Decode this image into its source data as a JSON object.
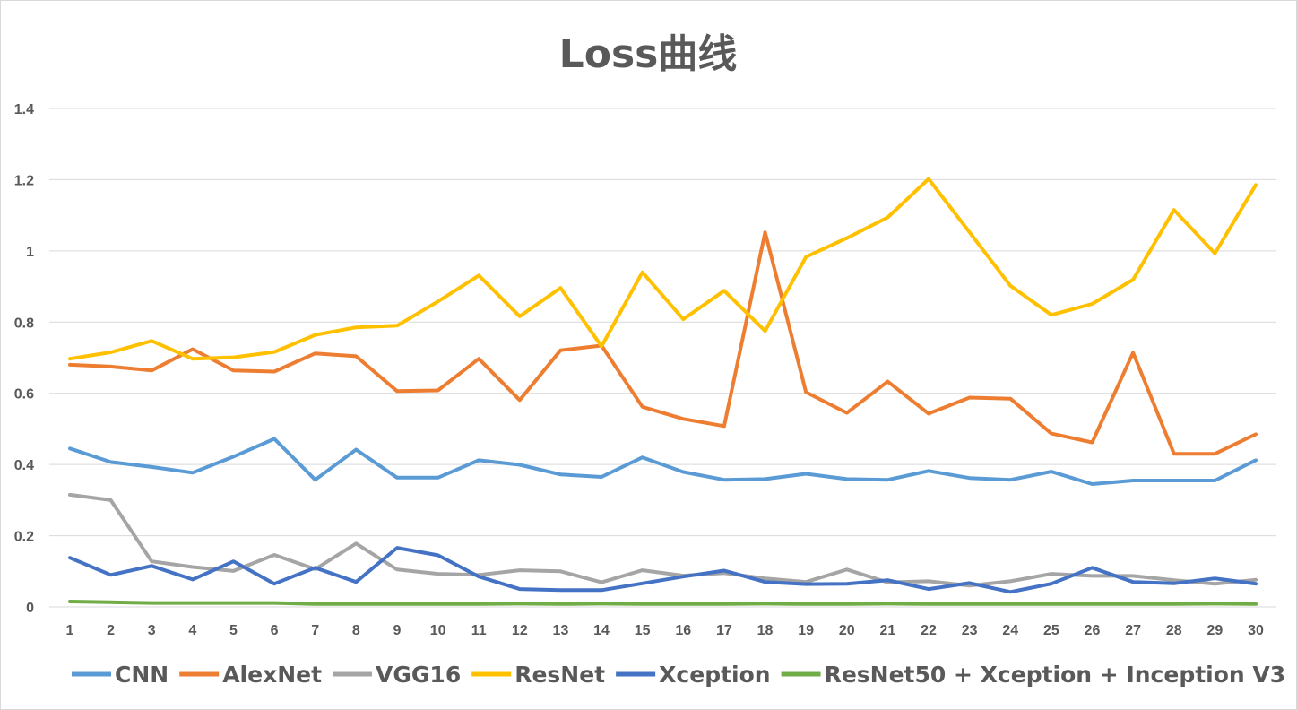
{
  "chart_data": {
    "type": "line",
    "title": "Loss曲线",
    "xlabel": "",
    "ylabel": "",
    "ylim": [
      0,
      1.4
    ],
    "y_ticks": [
      "0",
      "0.2",
      "0.4",
      "0.6",
      "0.8",
      "1",
      "1.2",
      "1.4"
    ],
    "y_tick_values": [
      0,
      0.2,
      0.4,
      0.6,
      0.8,
      1,
      1.2,
      1.4
    ],
    "grid": true,
    "legend_position": "bottom",
    "categories": [
      "1",
      "2",
      "3",
      "4",
      "5",
      "6",
      "7",
      "8",
      "9",
      "10",
      "11",
      "12",
      "13",
      "14",
      "15",
      "16",
      "17",
      "18",
      "19",
      "20",
      "21",
      "22",
      "23",
      "24",
      "25",
      "26",
      "27",
      "28",
      "29",
      "30"
    ],
    "series": [
      {
        "name": "CNN",
        "color": "#5b9bd5",
        "values": [
          0.445,
          0.407,
          0.393,
          0.377,
          0.422,
          0.472,
          0.357,
          0.442,
          0.363,
          0.363,
          0.412,
          0.399,
          0.372,
          0.365,
          0.42,
          0.379,
          0.357,
          0.359,
          0.374,
          0.359,
          0.357,
          0.382,
          0.362,
          0.357,
          0.38,
          0.345,
          0.355,
          0.355,
          0.355,
          0.412
        ]
      },
      {
        "name": "AlexNet",
        "color": "#ed7d31",
        "values": [
          0.68,
          0.675,
          0.664,
          0.724,
          0.664,
          0.661,
          0.712,
          0.704,
          0.606,
          0.608,
          0.697,
          0.581,
          0.721,
          0.734,
          0.562,
          0.528,
          0.508,
          1.052,
          0.603,
          0.545,
          0.633,
          0.543,
          0.588,
          0.585,
          0.487,
          0.462,
          0.714,
          0.43,
          0.43,
          0.485
        ]
      },
      {
        "name": "VGG16",
        "color": "#a5a5a5",
        "values": [
          0.315,
          0.3,
          0.128,
          0.112,
          0.101,
          0.146,
          0.106,
          0.178,
          0.105,
          0.093,
          0.09,
          0.103,
          0.1,
          0.069,
          0.103,
          0.088,
          0.095,
          0.08,
          0.07,
          0.105,
          0.069,
          0.072,
          0.06,
          0.072,
          0.093,
          0.087,
          0.087,
          0.075,
          0.065,
          0.076
        ]
      },
      {
        "name": "ResNet",
        "color": "#ffc000",
        "values": [
          0.697,
          0.715,
          0.747,
          0.697,
          0.701,
          0.716,
          0.764,
          0.785,
          0.79,
          0.858,
          0.931,
          0.816,
          0.896,
          0.732,
          0.94,
          0.808,
          0.888,
          0.775,
          0.983,
          1.036,
          1.094,
          1.202,
          1.052,
          0.902,
          0.82,
          0.851,
          0.919,
          1.115,
          0.993,
          1.185
        ]
      },
      {
        "name": "Xception",
        "color": "#4472c4",
        "values": [
          0.138,
          0.09,
          0.115,
          0.077,
          0.128,
          0.065,
          0.11,
          0.07,
          0.166,
          0.145,
          0.085,
          0.05,
          0.047,
          0.047,
          0.066,
          0.085,
          0.102,
          0.07,
          0.064,
          0.065,
          0.075,
          0.05,
          0.067,
          0.042,
          0.065,
          0.11,
          0.07,
          0.066,
          0.08,
          0.065
        ]
      },
      {
        "name": "ResNet50 + Xception + Inception V3",
        "color": "#70ad47",
        "values": [
          0.015,
          0.013,
          0.011,
          0.011,
          0.011,
          0.011,
          0.008,
          0.008,
          0.008,
          0.008,
          0.008,
          0.009,
          0.008,
          0.009,
          0.008,
          0.008,
          0.008,
          0.009,
          0.008,
          0.008,
          0.009,
          0.008,
          0.008,
          0.008,
          0.008,
          0.008,
          0.008,
          0.008,
          0.009,
          0.008
        ]
      }
    ]
  }
}
